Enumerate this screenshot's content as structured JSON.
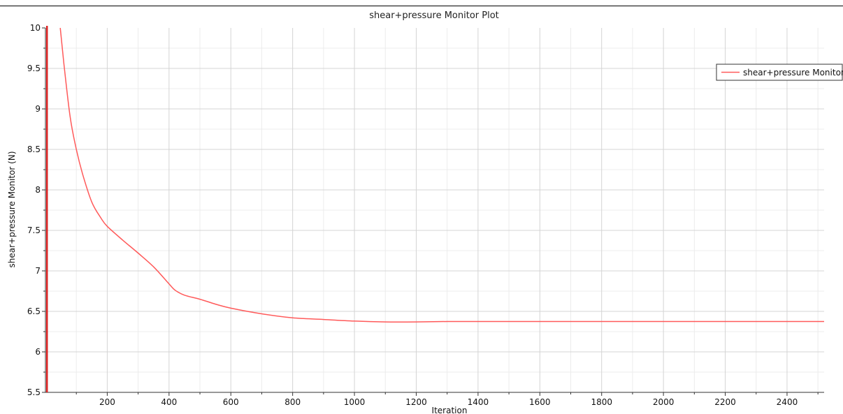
{
  "chart_data": {
    "type": "line",
    "title": "shear+pressure Monitor Plot",
    "xlabel": "Iteration",
    "ylabel": "shear+pressure Monitor (N)",
    "xlim": [
      0,
      2520
    ],
    "ylim": [
      5.5,
      10
    ],
    "x_ticks": [
      200,
      400,
      600,
      800,
      1000,
      1200,
      1400,
      1600,
      1800,
      2000,
      2200,
      2400
    ],
    "y_ticks": [
      5.5,
      6,
      6.5,
      7,
      7.5,
      8,
      8.5,
      9,
      9.5,
      10
    ],
    "x_tick_labels": [
      "200",
      "400",
      "600",
      "800",
      "1000",
      "1200",
      "1400",
      "1600",
      "1800",
      "2000",
      "2200",
      "2400"
    ],
    "y_tick_labels": [
      "5.5",
      "6",
      "6.5",
      "7",
      "7.5",
      "8",
      "8.5",
      "9",
      "9.5",
      "10"
    ],
    "grid": true,
    "legend_position": "top-right",
    "series": [
      {
        "name": "shear+pressure Monitor",
        "color": "#ff5a5a",
        "x": [
          48,
          60,
          80,
          100,
          120,
          150,
          180,
          200,
          250,
          300,
          350,
          400,
          420,
          450,
          500,
          550,
          600,
          700,
          800,
          900,
          1000,
          1100,
          1200,
          1300,
          1400,
          1600,
          1800,
          2000,
          2200,
          2400,
          2520
        ],
        "y": [
          10.0,
          9.55,
          8.9,
          8.5,
          8.2,
          7.85,
          7.65,
          7.55,
          7.38,
          7.22,
          7.05,
          6.84,
          6.76,
          6.7,
          6.65,
          6.59,
          6.54,
          6.47,
          6.42,
          6.4,
          6.38,
          6.37,
          6.37,
          6.375,
          6.375,
          6.375,
          6.375,
          6.375,
          6.375,
          6.375,
          6.375
        ]
      }
    ],
    "spike": {
      "x": 5,
      "y_top": 10,
      "color": "#dd2222"
    }
  }
}
